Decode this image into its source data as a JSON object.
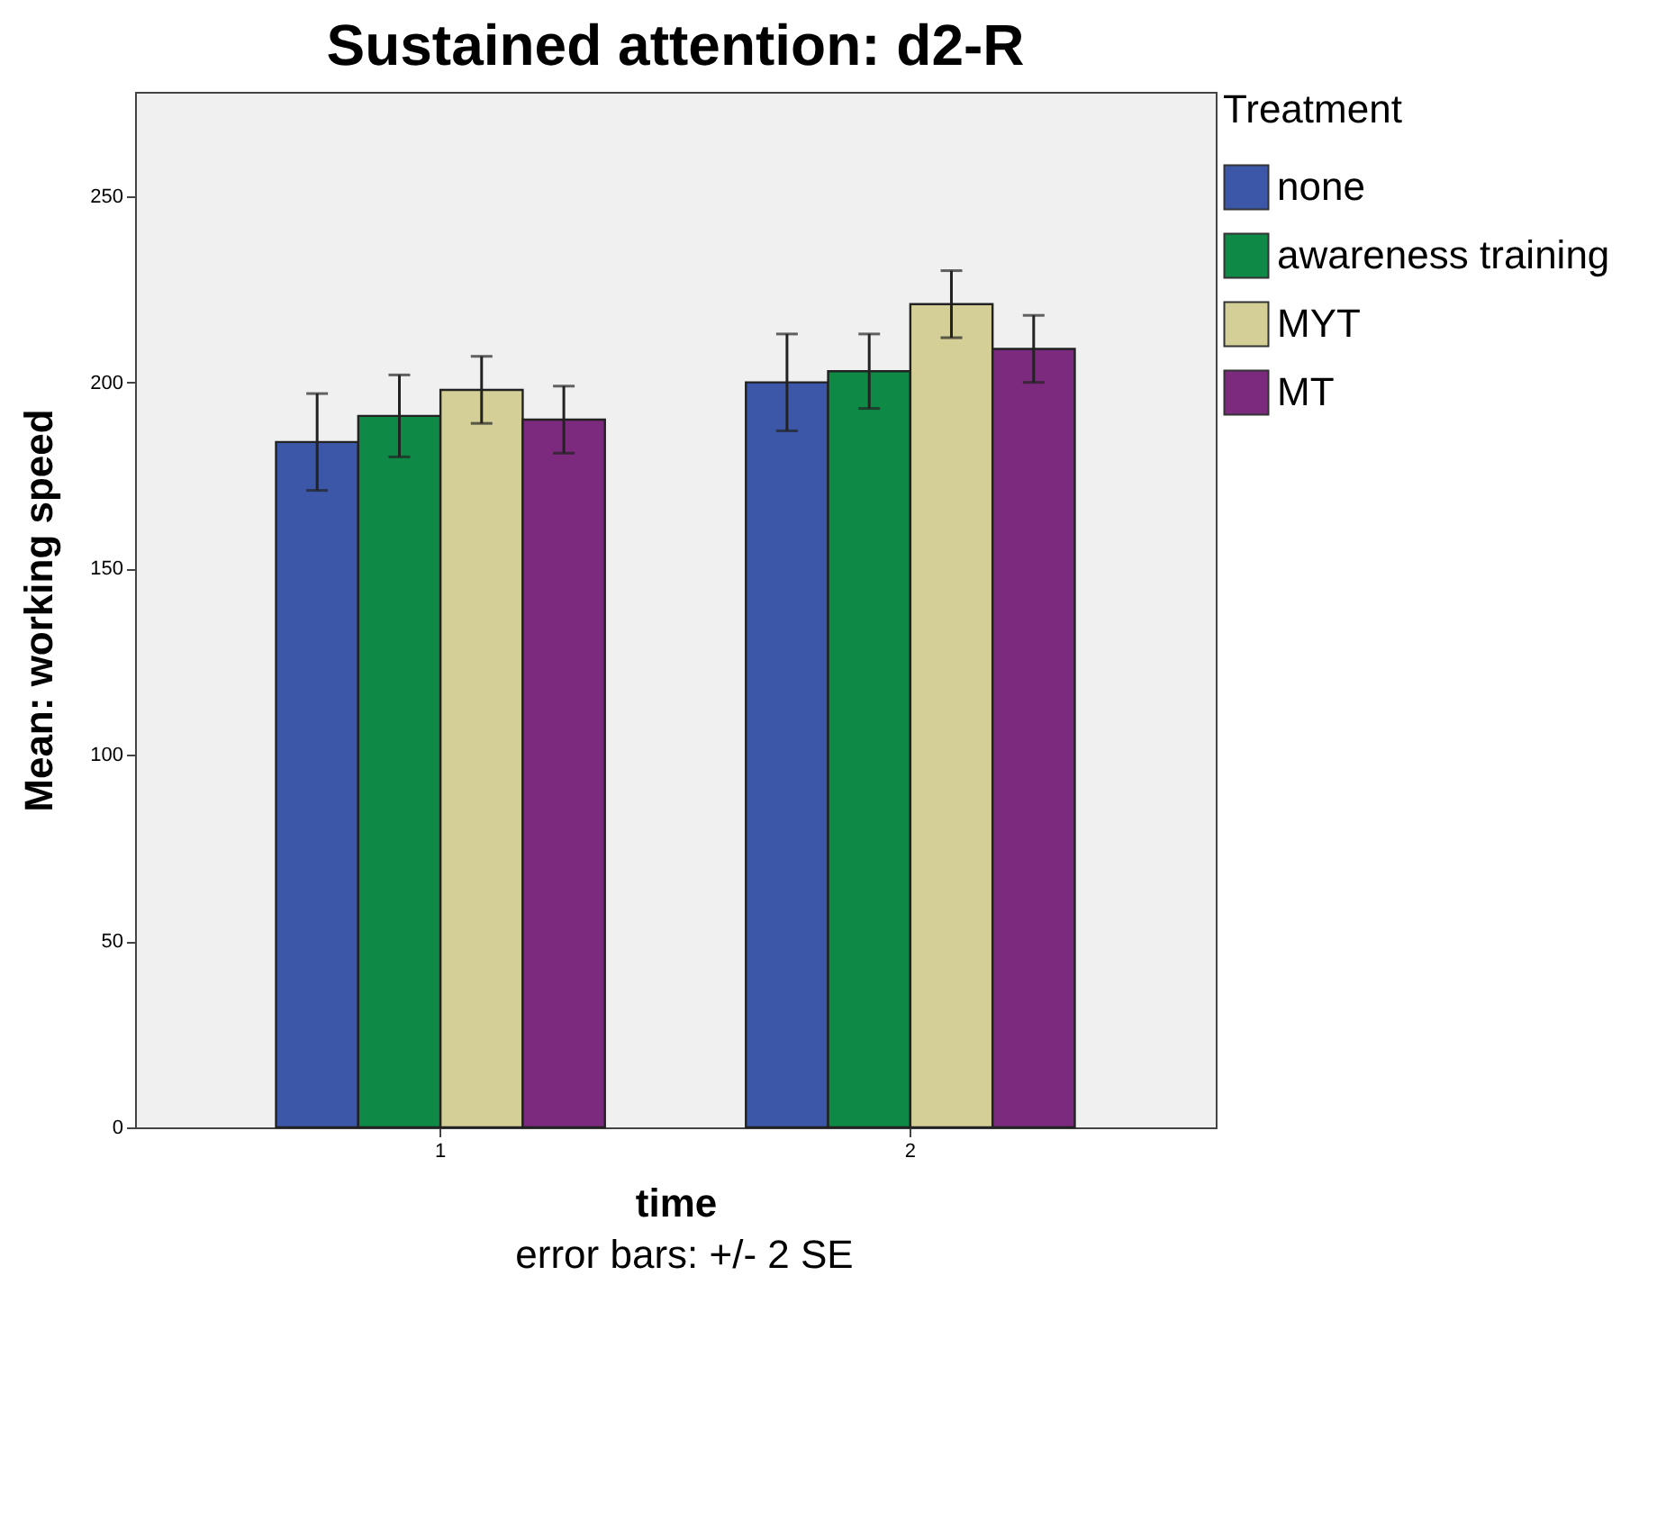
{
  "chart_data": {
    "type": "bar",
    "title": "Sustained attention: d2-R",
    "xlabel": "time",
    "ylabel": "Mean: working speed",
    "legend_title": "Treatment",
    "categories": [
      "1",
      "2"
    ],
    "series": [
      {
        "name": "none",
        "color": "#3c57a8",
        "values": [
          184,
          200
        ],
        "errors": [
          13,
          13
        ]
      },
      {
        "name": "awareness training",
        "color": "#0e8a46",
        "values": [
          191,
          203
        ],
        "errors": [
          11,
          10
        ]
      },
      {
        "name": "MYT",
        "color": "#d3cf96",
        "values": [
          198,
          221
        ],
        "errors": [
          9,
          9
        ]
      },
      {
        "name": "MT",
        "color": "#7b2a7d",
        "values": [
          190,
          209
        ],
        "errors": [
          9,
          9
        ]
      }
    ],
    "ylim": [
      0,
      278
    ],
    "yticks": [
      0,
      50,
      100,
      150,
      200,
      250
    ],
    "legend": "top right",
    "annotations": [
      "error bars: +/- 2 SE"
    ]
  }
}
